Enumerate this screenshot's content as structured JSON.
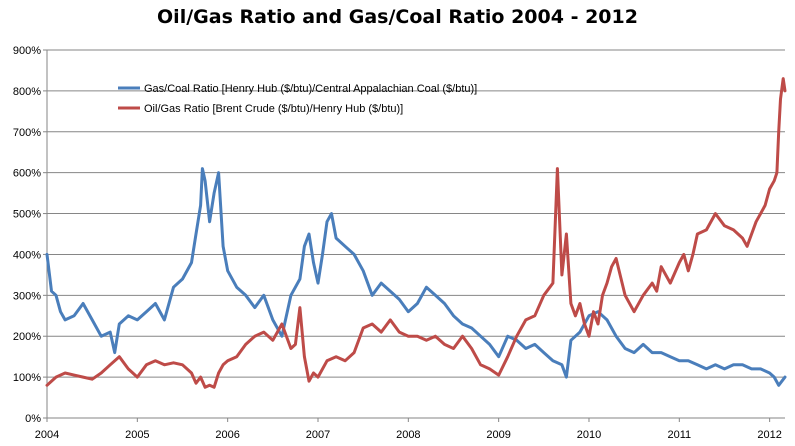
{
  "chart_data": {
    "type": "line",
    "title": "Oil/Gas Ratio and Gas/Coal Ratio 2004 - 2012",
    "xlabel": "",
    "ylabel": "",
    "xlim": [
      2004,
      2012.17
    ],
    "ylim": [
      0,
      900
    ],
    "x_ticks": [
      2004,
      2005,
      2006,
      2007,
      2008,
      2009,
      2010,
      2011,
      2012
    ],
    "x_tick_labels": [
      "2004",
      "2005",
      "2006",
      "2007",
      "2008",
      "2009",
      "2010",
      "2011",
      "2012"
    ],
    "y_ticks": [
      0,
      100,
      200,
      300,
      400,
      500,
      600,
      700,
      800,
      900
    ],
    "y_tick_labels": [
      "0%",
      "100%",
      "200%",
      "300%",
      "400%",
      "500%",
      "600%",
      "700%",
      "800%",
      "900%"
    ],
    "grid": "horizontal",
    "legend_position": "top-left",
    "series": [
      {
        "name": "Gas/Coal Ratio [Henry Hub ($/btu)/Central Appalachian Coal ($/btu)]",
        "color": "#4A7EBB",
        "x": [
          2004.0,
          2004.05,
          2004.1,
          2004.15,
          2004.2,
          2004.3,
          2004.4,
          2004.5,
          2004.6,
          2004.7,
          2004.75,
          2004.8,
          2004.9,
          2005.0,
          2005.1,
          2005.2,
          2005.3,
          2005.4,
          2005.5,
          2005.6,
          2005.65,
          2005.7,
          2005.72,
          2005.75,
          2005.8,
          2005.85,
          2005.9,
          2005.95,
          2006.0,
          2006.1,
          2006.2,
          2006.3,
          2006.4,
          2006.5,
          2006.6,
          2006.7,
          2006.8,
          2006.85,
          2006.9,
          2006.95,
          2007.0,
          2007.05,
          2007.1,
          2007.15,
          2007.2,
          2007.3,
          2007.4,
          2007.5,
          2007.6,
          2007.7,
          2007.8,
          2007.9,
          2008.0,
          2008.1,
          2008.2,
          2008.3,
          2008.4,
          2008.5,
          2008.6,
          2008.7,
          2008.8,
          2008.9,
          2009.0,
          2009.1,
          2009.2,
          2009.3,
          2009.4,
          2009.5,
          2009.6,
          2009.7,
          2009.75,
          2009.8,
          2009.9,
          2010.0,
          2010.1,
          2010.2,
          2010.3,
          2010.4,
          2010.5,
          2010.6,
          2010.7,
          2010.8,
          2010.9,
          2011.0,
          2011.1,
          2011.2,
          2011.3,
          2011.4,
          2011.5,
          2011.6,
          2011.7,
          2011.8,
          2011.9,
          2012.0,
          2012.05,
          2012.1,
          2012.17
        ],
        "values": [
          400,
          310,
          300,
          260,
          240,
          250,
          280,
          240,
          200,
          210,
          160,
          230,
          250,
          240,
          260,
          280,
          240,
          320,
          340,
          380,
          450,
          520,
          610,
          580,
          480,
          550,
          600,
          420,
          360,
          320,
          300,
          270,
          300,
          240,
          200,
          300,
          340,
          420,
          450,
          380,
          330,
          400,
          480,
          500,
          440,
          420,
          400,
          360,
          300,
          330,
          310,
          290,
          260,
          280,
          320,
          300,
          280,
          250,
          230,
          220,
          200,
          180,
          150,
          200,
          190,
          170,
          180,
          160,
          140,
          130,
          100,
          190,
          210,
          250,
          260,
          240,
          200,
          170,
          160,
          180,
          160,
          160,
          150,
          140,
          140,
          130,
          120,
          130,
          120,
          130,
          130,
          120,
          120,
          110,
          100,
          80,
          100
        ]
      },
      {
        "name": "Oil/Gas Ratio [Brent Crude ($/btu)/Henry Hub ($/btu)]",
        "color": "#BE4B48",
        "x": [
          2004.0,
          2004.1,
          2004.2,
          2004.3,
          2004.4,
          2004.5,
          2004.6,
          2004.7,
          2004.8,
          2004.9,
          2005.0,
          2005.1,
          2005.2,
          2005.3,
          2005.4,
          2005.5,
          2005.6,
          2005.65,
          2005.7,
          2005.75,
          2005.8,
          2005.85,
          2005.9,
          2005.95,
          2006.0,
          2006.1,
          2006.2,
          2006.3,
          2006.4,
          2006.5,
          2006.6,
          2006.7,
          2006.75,
          2006.8,
          2006.85,
          2006.9,
          2006.95,
          2007.0,
          2007.1,
          2007.2,
          2007.3,
          2007.4,
          2007.5,
          2007.6,
          2007.7,
          2007.8,
          2007.9,
          2008.0,
          2008.1,
          2008.2,
          2008.3,
          2008.4,
          2008.5,
          2008.6,
          2008.7,
          2008.8,
          2008.9,
          2009.0,
          2009.1,
          2009.2,
          2009.3,
          2009.4,
          2009.5,
          2009.6,
          2009.65,
          2009.7,
          2009.75,
          2009.8,
          2009.85,
          2009.9,
          2009.95,
          2010.0,
          2010.05,
          2010.1,
          2010.15,
          2010.2,
          2010.25,
          2010.3,
          2010.4,
          2010.5,
          2010.6,
          2010.7,
          2010.75,
          2010.8,
          2010.9,
          2011.0,
          2011.05,
          2011.1,
          2011.15,
          2011.2,
          2011.3,
          2011.4,
          2011.5,
          2011.6,
          2011.7,
          2011.75,
          2011.8,
          2011.85,
          2011.9,
          2011.95,
          2012.0,
          2012.05,
          2012.08,
          2012.1,
          2012.12,
          2012.15,
          2012.17
        ],
        "values": [
          80,
          100,
          110,
          105,
          100,
          95,
          110,
          130,
          150,
          120,
          100,
          130,
          140,
          130,
          135,
          130,
          110,
          85,
          100,
          75,
          80,
          75,
          110,
          130,
          140,
          150,
          180,
          200,
          210,
          190,
          230,
          170,
          180,
          270,
          150,
          90,
          110,
          100,
          140,
          150,
          140,
          160,
          220,
          230,
          210,
          240,
          210,
          200,
          200,
          190,
          200,
          180,
          170,
          200,
          170,
          130,
          120,
          105,
          150,
          200,
          240,
          250,
          300,
          330,
          610,
          350,
          450,
          280,
          250,
          280,
          230,
          200,
          260,
          230,
          300,
          330,
          370,
          390,
          300,
          260,
          300,
          330,
          310,
          370,
          330,
          380,
          400,
          360,
          400,
          450,
          460,
          500,
          470,
          460,
          440,
          420,
          450,
          480,
          500,
          520,
          560,
          580,
          600,
          700,
          780,
          830,
          800
        ]
      }
    ]
  }
}
